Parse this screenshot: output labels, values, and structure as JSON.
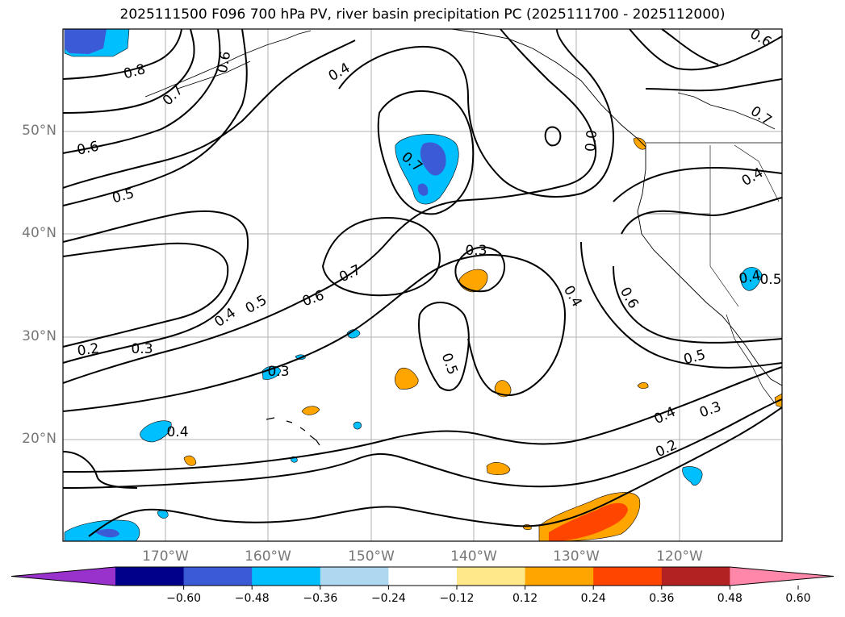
{
  "title": "2025111500 F096 700 hPa PV, river basin precipitation PC (2025111700 - 2025112000)",
  "map": {
    "lat_labels": [
      "50°N",
      "40°N",
      "30°N",
      "20°N"
    ],
    "lon_labels": [
      "170°W",
      "160°W",
      "150°W",
      "140°W",
      "130°W",
      "120°W"
    ],
    "contour_labels": [
      "0.8",
      "0.7",
      "0.6",
      "0.4",
      "0.6",
      "0.5",
      "0.7",
      "0.0",
      "0.6",
      "0.7",
      "0.4",
      "0.3",
      "0.7",
      "0.6",
      "0.5",
      "0.4",
      "0.3",
      "0.2",
      "0.4",
      "0.4",
      "0.6",
      "0.5",
      "0.5",
      "0.3",
      "0.4",
      "0.3",
      "0.2",
      "0.4",
      "0.5"
    ],
    "fill_colors": {
      "deep_blue": "#3b5bd6",
      "light_blue": "#00bfff",
      "orange": "#ffa500",
      "red_orange": "#ff4500"
    }
  },
  "colorbar": {
    "ticks": [
      "−0.60",
      "−0.48",
      "−0.36",
      "−0.24",
      "−0.12",
      "0.12",
      "0.24",
      "0.36",
      "0.48",
      "0.60"
    ],
    "colors": [
      "#9932cc",
      "#00008b",
      "#3b5bd6",
      "#00bfff",
      "#add8f0",
      "#ffffff",
      "#ffe88a",
      "#ffa500",
      "#ff4500",
      "#b22222",
      "#ff88aa"
    ]
  }
}
